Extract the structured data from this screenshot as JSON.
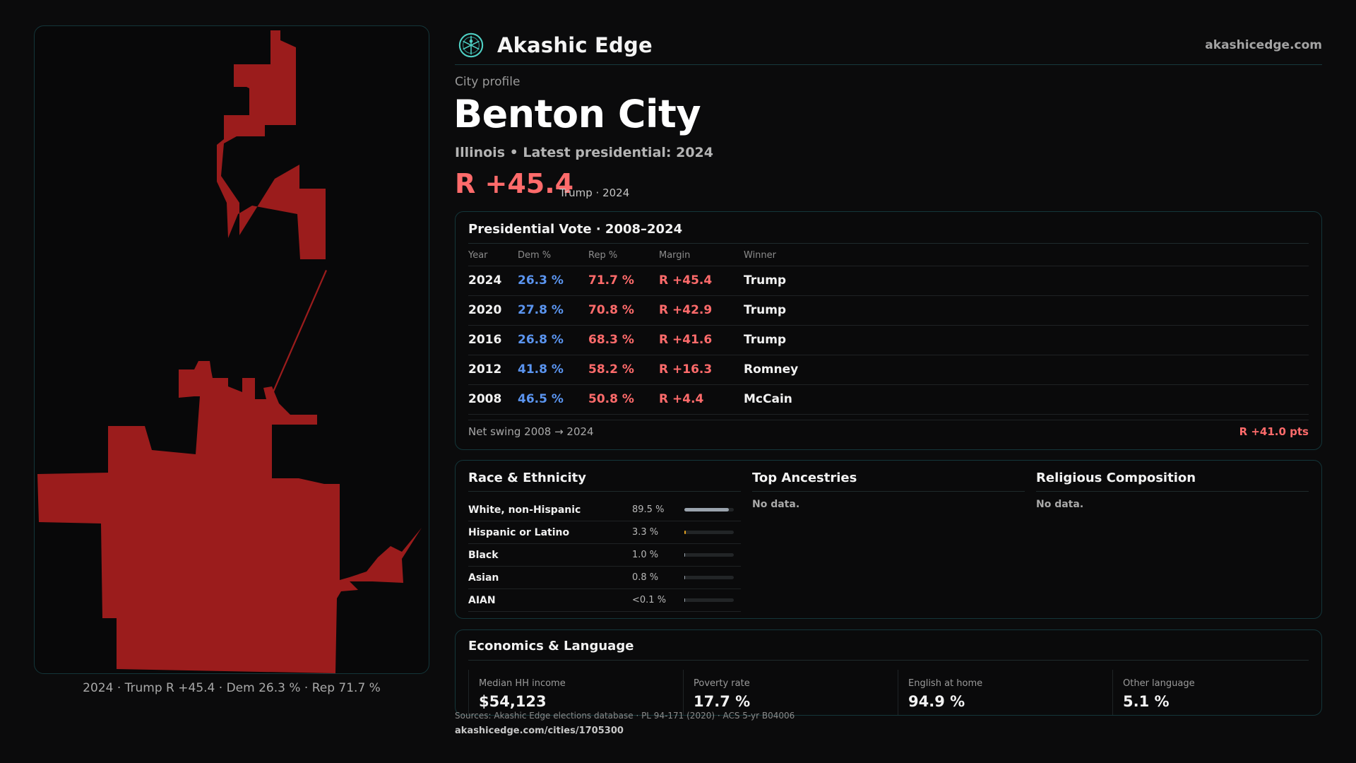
{
  "header": {
    "brand": "Akashic Edge",
    "domain": "akashicedge.com"
  },
  "profile": {
    "eyebrow": "City profile",
    "city": "Benton City",
    "subtitle": "Illinois • Latest presidential: 2024",
    "headline_margin": "R +45.4",
    "headline_note": "Trump · 2024"
  },
  "map": {
    "fill_color": "#9b1c1c",
    "caption": "2024 · Trump  R +45.4 · Dem 26.3 % · Rep 71.7 %"
  },
  "vote_table": {
    "title": "Presidential Vote · 2008–2024",
    "columns": [
      "Year",
      "Dem %",
      "Rep %",
      "Margin",
      "Winner"
    ],
    "rows": [
      {
        "year": "2024",
        "dem": "26.3 %",
        "rep": "71.7 %",
        "margin": "R +45.4",
        "winner": "Trump"
      },
      {
        "year": "2020",
        "dem": "27.8 %",
        "rep": "70.8 %",
        "margin": "R +42.9",
        "winner": "Trump"
      },
      {
        "year": "2016",
        "dem": "26.8 %",
        "rep": "68.3 %",
        "margin": "R +41.6",
        "winner": "Trump"
      },
      {
        "year": "2012",
        "dem": "41.8 %",
        "rep": "58.2 %",
        "margin": "R +16.3",
        "winner": "Romney"
      },
      {
        "year": "2008",
        "dem": "46.5 %",
        "rep": "50.8 %",
        "margin": "R +4.4",
        "winner": "McCain"
      }
    ],
    "swing_label": "Net swing 2008 → 2024",
    "swing_value": "R +41.0 pts"
  },
  "race": {
    "title": "Race & Ethnicity",
    "rows": [
      {
        "label": "White, non-Hispanic",
        "pct": "89.5 %",
        "fraction": 0.895,
        "color": "#9aa3ad"
      },
      {
        "label": "Hispanic or Latino",
        "pct": "3.3 %",
        "fraction": 0.033,
        "color": "#e0a020"
      },
      {
        "label": "Black",
        "pct": "1.0 %",
        "fraction": 0.01,
        "color": "#9aa3ad"
      },
      {
        "label": "Asian",
        "pct": "0.8 %",
        "fraction": 0.008,
        "color": "#9aa3ad"
      },
      {
        "label": "AIAN",
        "pct": "<0.1 %",
        "fraction": 0.0,
        "color": "#9aa3ad"
      }
    ]
  },
  "ancestries": {
    "title": "Top Ancestries",
    "empty": "No data."
  },
  "religion": {
    "title": "Religious Composition",
    "empty": "No data."
  },
  "economics": {
    "title": "Economics & Language",
    "stats": [
      {
        "label": "Median HH income",
        "value": "$54,123"
      },
      {
        "label": "Poverty rate",
        "value": "17.7 %"
      },
      {
        "label": "English at home",
        "value": "94.9 %"
      },
      {
        "label": "Other language",
        "value": "5.1 %"
      }
    ]
  },
  "footer": {
    "sources": "Sources: Akashic Edge elections database · PL 94-171 (2020) · ACS 5-yr B04006",
    "url": "akashicedge.com/cities/1705300"
  }
}
